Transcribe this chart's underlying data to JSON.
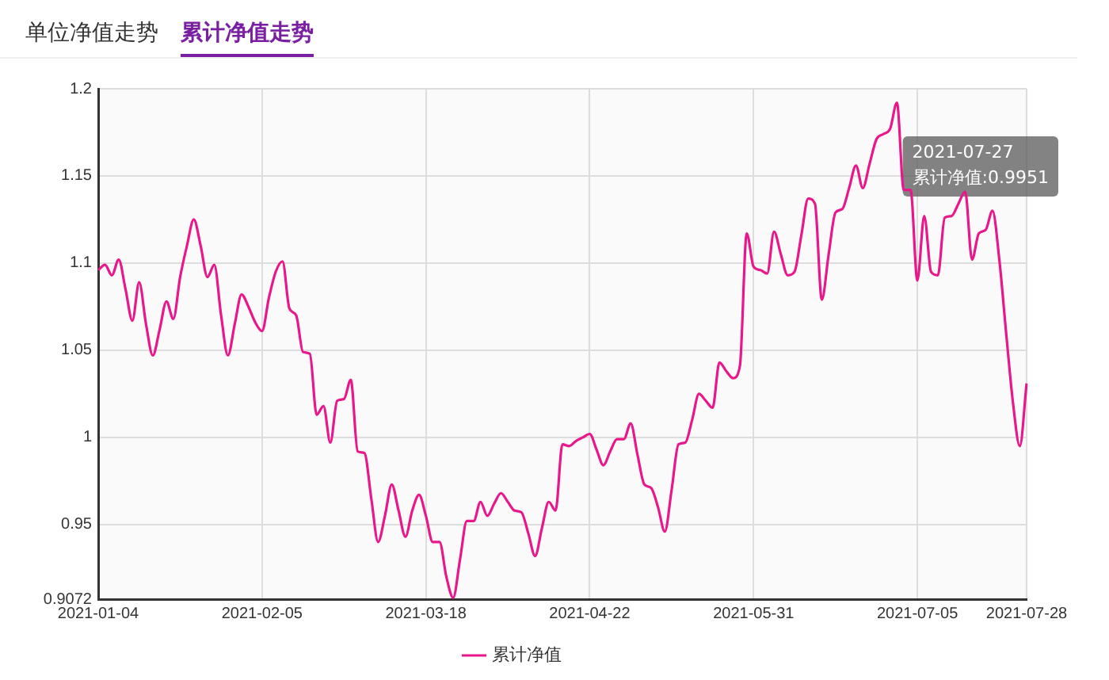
{
  "chart_data": {
    "type": "line",
    "title": "累计净值走势",
    "subtitle": "单位净值走势",
    "categories": [
      "2021-01-04",
      null,
      null,
      null,
      null,
      null,
      null,
      null,
      null,
      null,
      null,
      null,
      null,
      null,
      null,
      null,
      null,
      null,
      null,
      null,
      null,
      null,
      null,
      null,
      "2021-02-05",
      null,
      null,
      null,
      null,
      null,
      null,
      null,
      null,
      null,
      null,
      null,
      null,
      null,
      null,
      null,
      null,
      null,
      null,
      null,
      null,
      null,
      null,
      null,
      "2021-03-18",
      null,
      null,
      null,
      null,
      null,
      null,
      null,
      null,
      null,
      null,
      null,
      null,
      null,
      null,
      null,
      null,
      null,
      null,
      null,
      null,
      null,
      null,
      null,
      "2021-04-22",
      null,
      null,
      null,
      null,
      null,
      null,
      null,
      null,
      null,
      null,
      null,
      null,
      null,
      null,
      null,
      null,
      null,
      null,
      null,
      null,
      null,
      null,
      null,
      "2021-05-31",
      null,
      null,
      null,
      null,
      null,
      null,
      null,
      null,
      null,
      null,
      null,
      null,
      null,
      null,
      null,
      null,
      null,
      null,
      null,
      null,
      null,
      null,
      null,
      "2021-07-05",
      null,
      null,
      null,
      null,
      null,
      null,
      null,
      null,
      null,
      null,
      null,
      null,
      null,
      null,
      null,
      "2021-07-28"
    ],
    "series": [
      {
        "name": "累计净值",
        "color": "#e8178c",
        "values": [
          1.096,
          1.099,
          1.093,
          1.102,
          1.085,
          1.067,
          1.089,
          1.065,
          1.047,
          1.062,
          1.078,
          1.068,
          1.092,
          1.11,
          1.125,
          1.11,
          1.092,
          1.099,
          1.07,
          1.047,
          1.065,
          1.082,
          1.075,
          1.066,
          1.061,
          1.08,
          1.095,
          1.101,
          1.074,
          1.07,
          1.049,
          1.048,
          1.013,
          1.018,
          0.997,
          1.021,
          1.022,
          1.033,
          0.992,
          0.991,
          0.965,
          0.94,
          0.955,
          0.973,
          0.958,
          0.943,
          0.958,
          0.967,
          0.955,
          0.94,
          0.94,
          0.92,
          0.908,
          0.93,
          0.952,
          0.952,
          0.963,
          0.955,
          0.962,
          0.968,
          0.963,
          0.958,
          0.957,
          0.945,
          0.932,
          0.948,
          0.963,
          0.958,
          0.996,
          0.995,
          0.998,
          1.0,
          1.002,
          0.993,
          0.984,
          0.992,
          0.999,
          0.999,
          1.008,
          0.99,
          0.973,
          0.971,
          0.96,
          0.946,
          0.97,
          0.996,
          0.997,
          1.01,
          1.025,
          1.021,
          1.017,
          1.043,
          1.038,
          1.034,
          1.041,
          1.117,
          1.098,
          1.096,
          1.094,
          1.118,
          1.105,
          1.093,
          1.095,
          1.116,
          1.137,
          1.134,
          1.079,
          1.105,
          1.129,
          1.131,
          1.143,
          1.156,
          1.143,
          1.157,
          1.171,
          1.174,
          1.177,
          1.192,
          1.142,
          1.142,
          1.09,
          1.127,
          1.095,
          1.093,
          1.126,
          1.127,
          1.134,
          1.141,
          1.102,
          1.117,
          1.119,
          1.13,
          1.102,
          1.06,
          1.02,
          0.995,
          1.031
        ]
      }
    ],
    "ylim": [
      0.9072,
      1.2
    ],
    "yticks": [
      0.9072,
      0.95,
      1,
      1.05,
      1.1,
      1.15,
      1.2
    ],
    "grid": true,
    "legend": "bottom",
    "marker": "none",
    "line_style": "solid",
    "annotations": [
      "2021-07-27\n累计净值:0.9951"
    ]
  }
}
